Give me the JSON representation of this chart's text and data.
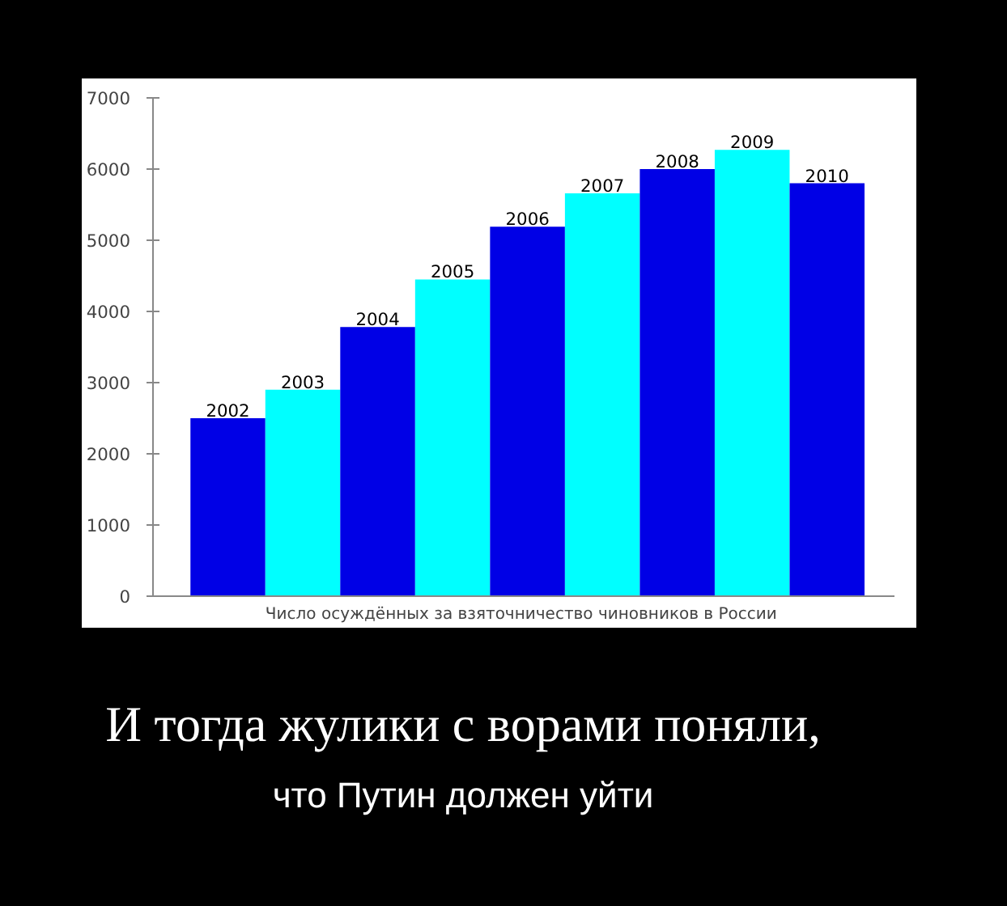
{
  "chart_data": {
    "type": "bar",
    "xlabel": "Число осуждённых за взяточничество чиновников  в России",
    "categories": [
      "2002",
      "2003",
      "2004",
      "2005",
      "2006",
      "2007",
      "2008",
      "2009",
      "2010"
    ],
    "values": [
      2500,
      2900,
      3780,
      4450,
      5190,
      5660,
      6000,
      6270,
      5800
    ],
    "colors": [
      "#0000e6",
      "#00ffff",
      "#0000e6",
      "#00ffff",
      "#0000e6",
      "#00ffff",
      "#0000e6",
      "#00ffff",
      "#0000e6"
    ],
    "ylim": [
      0,
      7000
    ],
    "yticks": [
      0,
      1000,
      2000,
      3000,
      4000,
      5000,
      6000,
      7000
    ],
    "grid": false,
    "annotations": [
      "И тогда жулики с ворами поняли,",
      "что Путин должен уйти"
    ]
  }
}
